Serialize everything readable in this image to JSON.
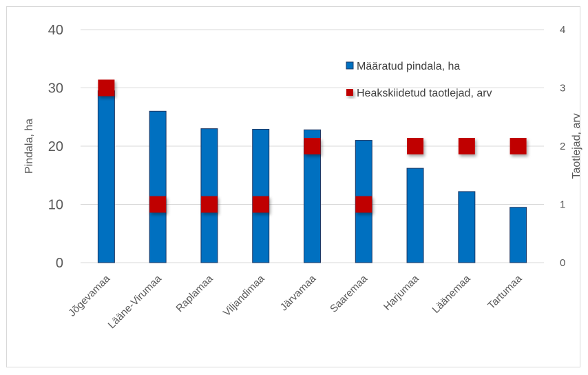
{
  "chart_data": {
    "type": "bar",
    "categories": [
      "Jõgevamaa",
      "Lääne-Virumaa",
      "Raplamaa",
      "Viljandimaa",
      "Järvamaa",
      "Saaremaa",
      "Harjumaa",
      "Läänemaa",
      "Tartumaa"
    ],
    "series": [
      {
        "name": "Määratud pindala, ha",
        "type": "bar",
        "axis": "left",
        "color": "#0070c0",
        "values": [
          29.5,
          26,
          23,
          22.9,
          22.8,
          21,
          16.2,
          12.2,
          9.5
        ]
      },
      {
        "name": "Heakskiidetud taotlejad, arv",
        "type": "marker",
        "axis": "right",
        "color": "#c00000",
        "values": [
          3,
          1,
          1,
          1,
          2,
          1,
          2,
          2,
          2
        ]
      }
    ],
    "ylabel": "Pindala, ha",
    "y2label": "Taotlejad, arv",
    "ylim": [
      0,
      40
    ],
    "y2lim": [
      0,
      4
    ],
    "yticks": [
      "0",
      "10",
      "20",
      "30",
      "40"
    ],
    "y2ticks": [
      "0",
      "1",
      "2",
      "3",
      "4"
    ],
    "grid": true,
    "legend_position": "top-right"
  }
}
